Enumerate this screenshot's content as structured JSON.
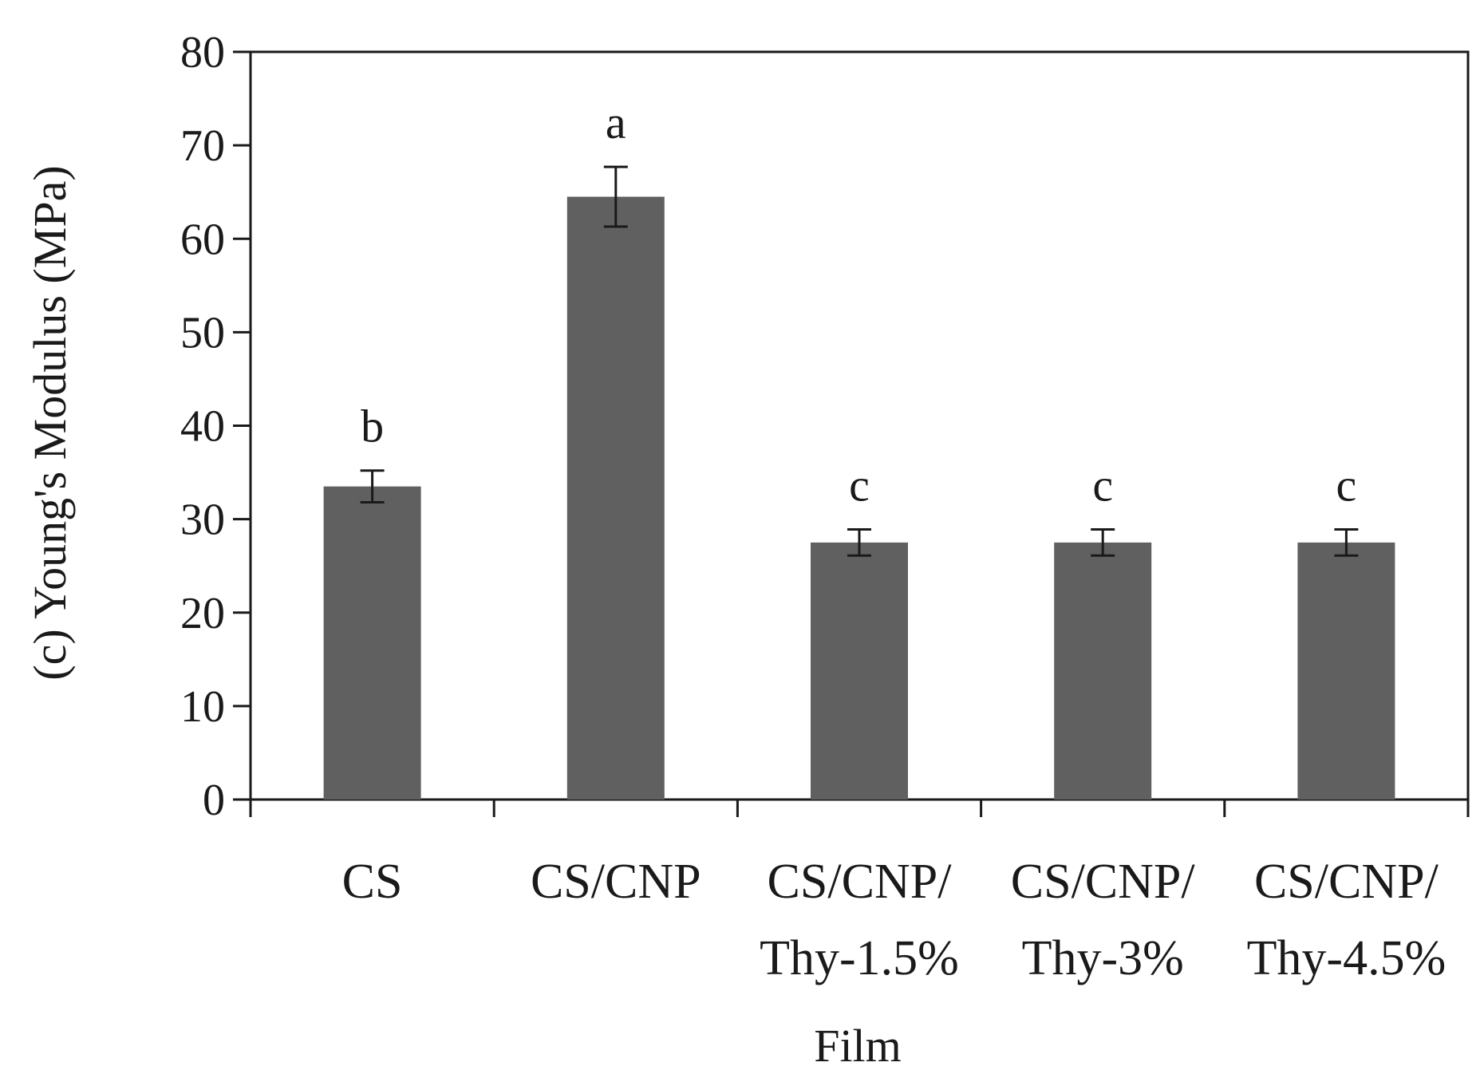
{
  "chart_data": {
    "type": "bar",
    "title": "",
    "xlabel": "Film",
    "ylabel": "(c) Young's Modulus (MPa)",
    "ylim": [
      0,
      80
    ],
    "yticks": [
      0,
      10,
      20,
      30,
      40,
      50,
      60,
      70,
      80
    ],
    "grid": false,
    "legend": "none",
    "bar_color": "#606060",
    "categories": [
      [
        "CS"
      ],
      [
        "CS/CNP"
      ],
      [
        "CS/CNP/",
        "Thy-1.5%"
      ],
      [
        "CS/CNP/",
        "Thy-3%"
      ],
      [
        "CS/CNP/",
        "Thy-4.5%"
      ]
    ],
    "values": [
      33.5,
      64.5,
      27.5,
      27.5,
      27.5
    ],
    "errors": [
      1.7,
      3.2,
      1.4,
      1.4,
      1.4
    ],
    "significance": [
      "b",
      "a",
      "c",
      "c",
      "c"
    ]
  }
}
